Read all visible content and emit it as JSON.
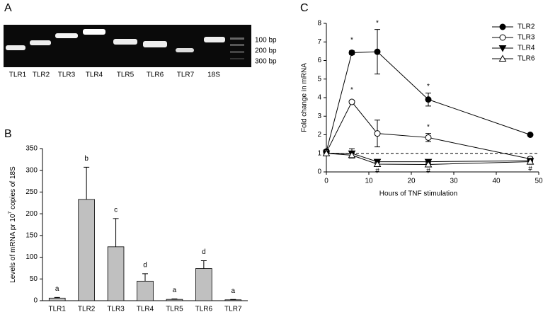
{
  "panel_labels": [
    "A",
    "B",
    "C"
  ],
  "gel": {
    "lanes": [
      "TLR1",
      "TLR2",
      "TLR3",
      "TLR4",
      "TLR5",
      "TLR6",
      "TLR7",
      "18S"
    ],
    "ladder": [
      "100 bp",
      "200 bp",
      "300 bp"
    ]
  },
  "chart_data": [
    {
      "type": "bar",
      "categories": [
        "TLR1",
        "TLR2",
        "TLR3",
        "TLR4",
        "TLR5",
        "TLR6",
        "TLR7"
      ],
      "values": [
        6,
        233,
        124,
        45,
        3,
        74,
        2
      ],
      "errors": [
        1.5,
        74,
        65,
        17,
        1,
        18,
        0.8
      ],
      "annotations": [
        "a",
        "b",
        "c",
        "d",
        "a",
        "d",
        "a"
      ],
      "ylabel": [
        "Levels of mRNA pr 10",
        "7",
        " copies of 18S"
      ],
      "color": "#c0c0c0",
      "ylim": [
        0,
        350
      ],
      "yticks": [
        0,
        50,
        100,
        150,
        200,
        250,
        300,
        350
      ]
    },
    {
      "type": "line",
      "x": [
        0,
        6,
        12,
        24,
        48
      ],
      "series": [
        {
          "name": "TLR2",
          "color": "#000000",
          "marker": "circle",
          "filled": true,
          "values": [
            1.1,
            6.42,
            6.47,
            3.9,
            2.0
          ],
          "errors": [
            0.1,
            0.1,
            1.2,
            0.35,
            0.05
          ]
        },
        {
          "name": "TLR3",
          "color": "#000000",
          "marker": "circle",
          "filled": false,
          "values": [
            1.05,
            3.77,
            2.07,
            1.85,
            0.7
          ],
          "errors": [
            0.1,
            0.08,
            0.72,
            0.22,
            0.1
          ]
        },
        {
          "name": "TLR4",
          "color": "#000000",
          "marker": "triangle-down",
          "filled": true,
          "values": [
            1.0,
            1.0,
            0.55,
            0.55,
            0.6
          ],
          "errors": [
            0.1,
            0.25,
            0.12,
            0.1,
            0.05
          ]
        },
        {
          "name": "TLR6",
          "color": "#000000",
          "marker": "triangle-up",
          "filled": false,
          "values": [
            1.0,
            0.9,
            0.42,
            0.4,
            0.55
          ],
          "errors": [
            0.1,
            0.12,
            0.1,
            0.1,
            0.05
          ]
        }
      ],
      "reference_line": 1,
      "annotations": [
        {
          "text": "*",
          "x": 6,
          "y": 7.1
        },
        {
          "text": "*",
          "x": 12,
          "y": 8.0
        },
        {
          "text": "*",
          "x": 24,
          "y": 4.6
        },
        {
          "text": "*",
          "x": 6,
          "y": 4.4
        },
        {
          "text": "*",
          "x": 24,
          "y": 2.4
        },
        {
          "text": "#",
          "x": 12,
          "y": 0.05
        },
        {
          "text": "#",
          "x": 24,
          "y": 0.05
        },
        {
          "text": "#",
          "x": 48,
          "y": 0.15
        }
      ],
      "xlabel": "Hours of TNF stimulation",
      "ylabel": "Fold change in mRNA",
      "xlim": [
        0,
        50
      ],
      "xticks": [
        0,
        10,
        20,
        30,
        40,
        50
      ],
      "ylim": [
        0,
        8
      ],
      "yticks": [
        0,
        1,
        2,
        3,
        4,
        5,
        6,
        7,
        8
      ],
      "legend": "upper right"
    }
  ]
}
